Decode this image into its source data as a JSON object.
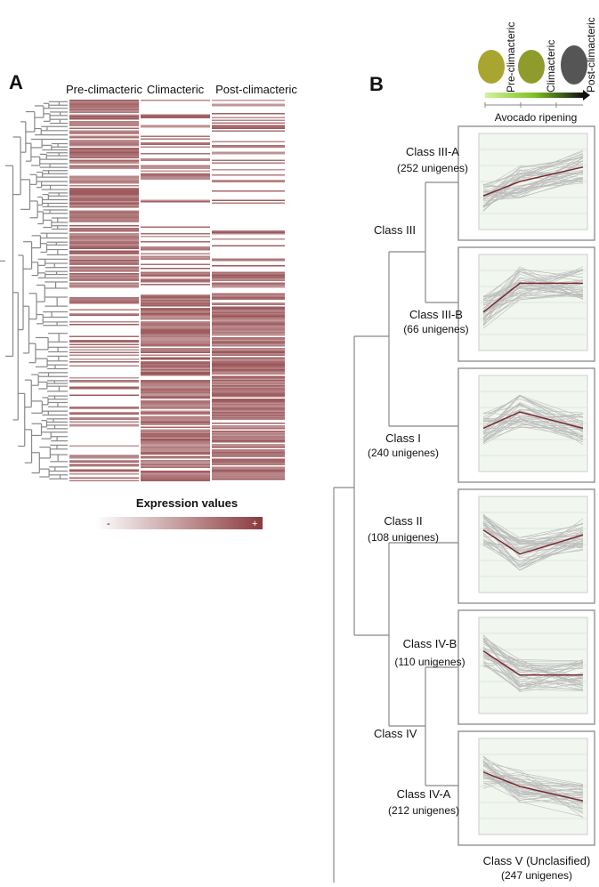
{
  "panel_a": {
    "label": "A",
    "columns": [
      "Pre-climacteric",
      "Climacteric",
      "Post-climacteric"
    ],
    "legend": {
      "title": "Expression values",
      "low": "-",
      "high": "+"
    }
  },
  "panel_b": {
    "label": "B",
    "stages": [
      "Pre-climacteric",
      "Climacteric",
      "Post-climacteric"
    ],
    "axis_label": "Avocado ripening",
    "classes": [
      {
        "name": "Class III-A",
        "count": "(252 unigenes)"
      },
      {
        "name": "Class III-B",
        "count": "(66 unigenes)"
      },
      {
        "name": "Class I",
        "count": "(240 unigenes)"
      },
      {
        "name": "Class II",
        "count": "(108 unigenes)"
      },
      {
        "name": "Class IV-B",
        "count": "(110 unigenes)"
      },
      {
        "name": "Class IV-A",
        "count": "(212 unigenes)"
      },
      {
        "name": "Class V (Unclasified)",
        "count": "(247 unigenes)"
      }
    ],
    "groups": [
      "Class III",
      "Class IV"
    ]
  }
}
